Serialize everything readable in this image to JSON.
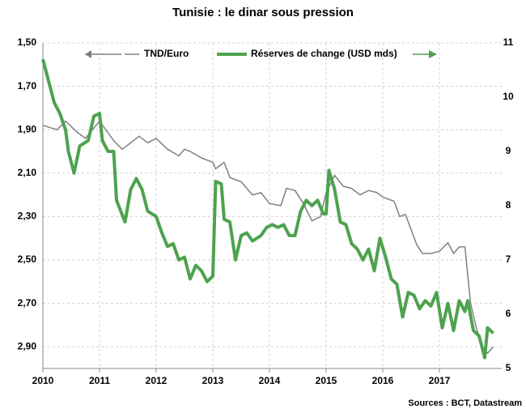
{
  "chart_data": {
    "type": "line",
    "title": "Tunisie : le dinar sous pression",
    "source": "Sources : BCT, Datastream",
    "xlim": [
      2010,
      2018.1
    ],
    "xticks": [
      2010,
      2011,
      2012,
      2013,
      2014,
      2015,
      2016,
      2017
    ],
    "ylim": [
      3.0,
      1.5
    ],
    "yticks": [
      {
        "value": 1.5,
        "label": "1,50"
      },
      {
        "value": 1.7,
        "label": "1,70"
      },
      {
        "value": 1.9,
        "label": "1,90"
      },
      {
        "value": 2.1,
        "label": "2,10"
      },
      {
        "value": 2.3,
        "label": "2,30"
      },
      {
        "value": 2.5,
        "label": "2,50"
      },
      {
        "value": 2.7,
        "label": "2,70"
      },
      {
        "value": 2.9,
        "label": "2,90"
      }
    ],
    "y2lim": [
      5,
      11
    ],
    "y2ticks": [
      5,
      6,
      7,
      8,
      9,
      10,
      11
    ],
    "grid": true,
    "series": [
      {
        "name": "TND/Euro",
        "color": "#808080",
        "axis": "y",
        "x": [
          2010.0,
          2010.25,
          2010.4,
          2010.6,
          2010.75,
          2011.0,
          2011.25,
          2011.4,
          2011.5,
          2011.7,
          2011.85,
          2012.0,
          2012.2,
          2012.4,
          2012.5,
          2012.6,
          2012.8,
          2013.0,
          2013.05,
          2013.2,
          2013.3,
          2013.5,
          2013.7,
          2013.85,
          2014.0,
          2014.2,
          2014.3,
          2014.45,
          2014.6,
          2014.75,
          2014.9,
          2015.0,
          2015.15,
          2015.3,
          2015.45,
          2015.6,
          2015.75,
          2015.9,
          2016.0,
          2016.2,
          2016.3,
          2016.4,
          2016.6,
          2016.7,
          2016.85,
          2017.0,
          2017.15,
          2017.25,
          2017.35,
          2017.45,
          2017.55,
          2017.65,
          2017.75,
          2017.85,
          2017.95
        ],
        "values": [
          1.88,
          1.9,
          1.86,
          1.91,
          1.94,
          1.86,
          1.95,
          1.99,
          1.97,
          1.93,
          1.96,
          1.94,
          1.99,
          2.02,
          1.99,
          2.0,
          2.03,
          2.05,
          2.08,
          2.05,
          2.12,
          2.14,
          2.2,
          2.19,
          2.24,
          2.25,
          2.17,
          2.18,
          2.24,
          2.32,
          2.3,
          2.19,
          2.11,
          2.16,
          2.17,
          2.2,
          2.18,
          2.19,
          2.21,
          2.23,
          2.3,
          2.29,
          2.43,
          2.47,
          2.47,
          2.46,
          2.42,
          2.47,
          2.44,
          2.44,
          2.7,
          2.81,
          2.9,
          2.93,
          2.9
        ]
      },
      {
        "name": "Réserves de change (USD mds)",
        "color": "#4ea24e",
        "axis": "y2",
        "x": [
          2010.0,
          2010.1,
          2010.2,
          2010.3,
          2010.4,
          2010.45,
          2010.55,
          2010.65,
          2010.8,
          2010.9,
          2011.0,
          2011.05,
          2011.15,
          2011.25,
          2011.3,
          2011.45,
          2011.55,
          2011.65,
          2011.75,
          2011.85,
          2012.0,
          2012.1,
          2012.2,
          2012.3,
          2012.4,
          2012.5,
          2012.6,
          2012.7,
          2012.8,
          2012.9,
          2013.0,
          2013.05,
          2013.15,
          2013.2,
          2013.3,
          2013.4,
          2013.5,
          2013.6,
          2013.7,
          2013.85,
          2013.95,
          2014.05,
          2014.15,
          2014.25,
          2014.35,
          2014.45,
          2014.55,
          2014.65,
          2014.75,
          2014.85,
          2014.95,
          2015.0,
          2015.05,
          2015.15,
          2015.25,
          2015.35,
          2015.45,
          2015.55,
          2015.65,
          2015.75,
          2015.85,
          2015.95,
          2016.05,
          2016.15,
          2016.25,
          2016.35,
          2016.45,
          2016.55,
          2016.65,
          2016.75,
          2016.85,
          2016.95,
          2017.05,
          2017.15,
          2017.25,
          2017.35,
          2017.45,
          2017.5,
          2017.6,
          2017.7,
          2017.8,
          2017.85,
          2017.95
        ],
        "values": [
          10.7,
          10.3,
          9.9,
          9.7,
          9.4,
          9.0,
          8.6,
          9.1,
          9.2,
          9.65,
          9.7,
          9.2,
          9.0,
          9.0,
          8.1,
          7.7,
          8.3,
          8.5,
          8.3,
          7.9,
          7.8,
          7.5,
          7.25,
          7.3,
          7.0,
          7.05,
          6.65,
          6.9,
          6.8,
          6.6,
          6.7,
          8.45,
          8.4,
          7.75,
          7.7,
          7.0,
          7.45,
          7.5,
          7.35,
          7.45,
          7.6,
          7.65,
          7.6,
          7.65,
          7.45,
          7.45,
          7.9,
          8.1,
          8.0,
          8.1,
          7.85,
          7.85,
          8.65,
          8.3,
          7.7,
          7.65,
          7.3,
          7.2,
          7.0,
          7.2,
          6.8,
          7.4,
          7.05,
          6.65,
          6.55,
          5.95,
          6.4,
          6.35,
          6.1,
          6.25,
          6.15,
          6.4,
          5.75,
          6.2,
          5.7,
          6.25,
          6.05,
          6.25,
          5.7,
          5.6,
          5.2,
          5.75,
          5.65
        ]
      }
    ]
  }
}
